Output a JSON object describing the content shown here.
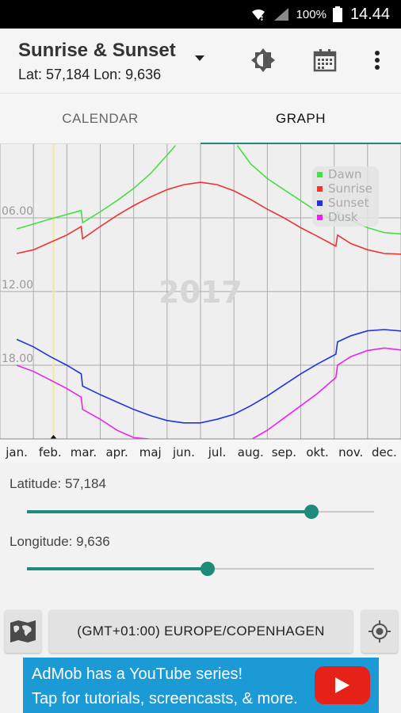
{
  "status": {
    "battery_pct": "100%",
    "time": "14.44"
  },
  "appbar": {
    "title": "Sunrise & Sunset",
    "subtitle": "Lat: 57,184 Lon: 9,636"
  },
  "tabs": [
    {
      "label": "CALENDAR"
    },
    {
      "label": "GRAPH"
    }
  ],
  "chart_data": {
    "type": "line",
    "year_label": "2017",
    "x_labels": [
      "jan.",
      "feb.",
      "mar.",
      "apr.",
      "maj",
      "jun.",
      "jul.",
      "aug.",
      "sep.",
      "okt.",
      "nov.",
      "dec."
    ],
    "y_labels": [
      "06.00",
      "12.00",
      "18.00"
    ],
    "y_inverted": true,
    "current_marker_month": 1.1,
    "legend": [
      "Dawn",
      "Sunrise",
      "Sunset",
      "Dusk"
    ],
    "series": [
      {
        "name": "Dawn",
        "color": "#44e044",
        "points": [
          [
            0,
            6.9
          ],
          [
            1,
            6.1
          ],
          [
            1.93,
            5.4
          ],
          [
            1.97,
            6.4
          ],
          [
            2.5,
            5.5
          ],
          [
            3,
            4.6
          ],
          [
            3.5,
            3.6
          ],
          [
            4,
            2.4
          ],
          [
            4.5,
            0.9
          ],
          [
            4.75,
            0.1
          ]
        ],
        "points2": [
          [
            6.6,
            0.1
          ],
          [
            7,
            1.6
          ],
          [
            7.5,
            2.8
          ],
          [
            8,
            3.7
          ],
          [
            8.5,
            4.6
          ],
          [
            9,
            5.5
          ],
          [
            9.55,
            6.3
          ],
          [
            9.6,
            5.5
          ],
          [
            10,
            6.2
          ],
          [
            10.5,
            6.8
          ],
          [
            11,
            7.2
          ],
          [
            11.9,
            7.4
          ]
        ]
      },
      {
        "name": "Sunrise",
        "color": "#ee3333",
        "points": [
          [
            0,
            8.9
          ],
          [
            0.5,
            8.6
          ],
          [
            1,
            8.0
          ],
          [
            1.5,
            7.4
          ],
          [
            1.93,
            6.7
          ],
          [
            1.97,
            7.7
          ],
          [
            2.5,
            6.7
          ],
          [
            3,
            5.8
          ],
          [
            3.5,
            5.0
          ],
          [
            4,
            4.3
          ],
          [
            4.5,
            3.7
          ],
          [
            5,
            3.3
          ],
          [
            5.5,
            3.1
          ],
          [
            6,
            3.3
          ],
          [
            6.5,
            3.8
          ],
          [
            7,
            4.5
          ],
          [
            7.5,
            5.3
          ],
          [
            8,
            6.0
          ],
          [
            8.5,
            6.8
          ],
          [
            9,
            7.5
          ],
          [
            9.55,
            8.3
          ],
          [
            9.6,
            7.4
          ],
          [
            10,
            8.1
          ],
          [
            10.5,
            8.6
          ],
          [
            11,
            8.9
          ],
          [
            11.9,
            9.0
          ]
        ]
      },
      {
        "name": "Sunset",
        "color": "#2233dd",
        "points": [
          [
            0,
            15.9
          ],
          [
            0.5,
            16.5
          ],
          [
            1,
            17.3
          ],
          [
            1.5,
            18.0
          ],
          [
            1.93,
            18.7
          ],
          [
            1.97,
            19.7
          ],
          [
            2.5,
            20.4
          ],
          [
            3,
            21.0
          ],
          [
            3.5,
            21.6
          ],
          [
            4,
            22.1
          ],
          [
            4.5,
            22.5
          ],
          [
            5,
            22.7
          ],
          [
            5.5,
            22.7
          ],
          [
            6,
            22.4
          ],
          [
            6.5,
            22.0
          ],
          [
            7,
            21.3
          ],
          [
            7.5,
            20.5
          ],
          [
            8,
            19.6
          ],
          [
            8.5,
            18.7
          ],
          [
            9,
            17.9
          ],
          [
            9.55,
            17.1
          ],
          [
            9.6,
            16.1
          ],
          [
            10,
            15.6
          ],
          [
            10.5,
            15.2
          ],
          [
            11,
            15.1
          ],
          [
            11.9,
            15.3
          ]
        ]
      },
      {
        "name": "Dusk",
        "color": "#ee22ee",
        "points": [
          [
            0,
            18.0
          ],
          [
            0.5,
            18.5
          ],
          [
            1,
            19.2
          ],
          [
            1.5,
            19.9
          ],
          [
            1.93,
            20.6
          ],
          [
            1.97,
            21.6
          ],
          [
            2.5,
            22.4
          ],
          [
            3,
            23.3
          ],
          [
            3.5,
            23.9
          ],
          [
            3.95,
            24.0
          ]
        ],
        "points2": [
          [
            7.05,
            24.0
          ],
          [
            7.5,
            23.3
          ],
          [
            8,
            22.3
          ],
          [
            8.5,
            21.3
          ],
          [
            9,
            20.3
          ],
          [
            9.55,
            19.0
          ],
          [
            9.6,
            18.0
          ],
          [
            10,
            17.3
          ],
          [
            10.5,
            16.8
          ],
          [
            11,
            16.6
          ],
          [
            11.9,
            16.9
          ]
        ]
      }
    ]
  },
  "latitude": {
    "label": "Latitude: 57,184",
    "fraction": 0.82
  },
  "longitude": {
    "label": "Longitude: 9,636",
    "fraction": 0.52
  },
  "timezone": {
    "label": "(GMT+01:00) EUROPE/COPENHAGEN"
  },
  "ad": {
    "line1": "AdMob has a YouTube series!",
    "line2": "Tap for tutorials, screencasts, & more."
  },
  "colors": {
    "accent": "#1e8a7a",
    "ad_bg": "#1b9ad6",
    "youtube_red": "#e62117"
  }
}
